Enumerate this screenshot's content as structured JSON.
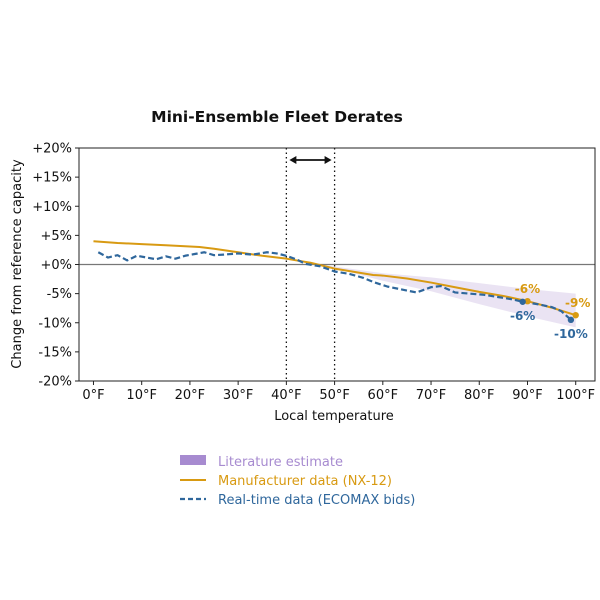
{
  "chart_data": {
    "type": "line",
    "title": "Mini-Ensemble Fleet Derates",
    "xlabel": "Local temperature",
    "ylabel": "Change from reference capacity",
    "xlim": [
      -3,
      104
    ],
    "ylim": [
      -20,
      20
    ],
    "xticks": [
      0,
      10,
      20,
      30,
      40,
      50,
      60,
      70,
      80,
      90,
      100
    ],
    "xtick_labels": [
      "0°F",
      "10°F",
      "20°F",
      "30°F",
      "40°F",
      "50°F",
      "60°F",
      "70°F",
      "80°F",
      "90°F",
      "100°F"
    ],
    "yticks": [
      20,
      15,
      10,
      5,
      0,
      -5,
      -10,
      -15,
      -20
    ],
    "ytick_labels": [
      "+20%",
      "+15%",
      "+10%",
      "+5%",
      "+0%",
      "-5%",
      "-10%",
      "-15%",
      "-20%"
    ],
    "grid": false,
    "reference_line_y": 0,
    "reference_band": {
      "x_start": 40,
      "x_end": 50
    },
    "series": [
      {
        "name": "Literature estimate",
        "kind": "band",
        "color": "#b39ad3",
        "x": [
          47,
          60,
          70,
          80,
          90,
          100
        ],
        "upper": [
          0,
          -1.5,
          -2.2,
          -3.2,
          -4.2,
          -5.0
        ],
        "lower": [
          0,
          -2.8,
          -4.6,
          -6.8,
          -8.9,
          -10.8
        ]
      },
      {
        "name": "Manufacturer data (NX-12)",
        "kind": "line",
        "color": "#d89a12",
        "x": [
          0,
          5,
          10,
          15,
          20,
          22,
          25,
          30,
          35,
          40,
          45,
          50,
          55,
          58,
          60,
          65,
          70,
          75,
          80,
          85,
          90,
          95,
          100
        ],
        "y": [
          4.0,
          3.7,
          3.5,
          3.3,
          3.1,
          3.0,
          2.7,
          2.1,
          1.5,
          1.0,
          0.3,
          -0.7,
          -1.4,
          -1.8,
          -1.9,
          -2.4,
          -3.1,
          -3.9,
          -4.7,
          -5.4,
          -6.3,
          -7.4,
          -8.7
        ]
      },
      {
        "name": "Real-time data (ECOMAX bids)",
        "kind": "dashed-line",
        "color": "#2f679c",
        "x": [
          1,
          3,
          5,
          7,
          9,
          11,
          13,
          15,
          17,
          19,
          21,
          23,
          25,
          27,
          30,
          33,
          36,
          38,
          40,
          42,
          44,
          47,
          50,
          53,
          56,
          58,
          61,
          64,
          67,
          70,
          72,
          75,
          78,
          81,
          84,
          87,
          89,
          92,
          95,
          97,
          99
        ],
        "y": [
          2.1,
          1.2,
          1.6,
          0.7,
          1.5,
          1.2,
          0.9,
          1.4,
          1.0,
          1.5,
          1.8,
          2.1,
          1.6,
          1.7,
          1.9,
          1.7,
          2.1,
          1.9,
          1.5,
          0.9,
          0.1,
          -0.3,
          -1.2,
          -1.6,
          -2.3,
          -3.0,
          -3.8,
          -4.3,
          -4.8,
          -3.9,
          -3.7,
          -4.8,
          -5.0,
          -5.2,
          -5.6,
          -6.0,
          -6.4,
          -6.8,
          -7.3,
          -8.0,
          -9.5
        ]
      }
    ],
    "markers": [
      {
        "series": "Manufacturer data (NX-12)",
        "x": 90,
        "y": -6.3,
        "label": "-6%",
        "label_pos": "above",
        "color": "#d89a12"
      },
      {
        "series": "Manufacturer data (NX-12)",
        "x": 100,
        "y": -8.7,
        "label": "-9%",
        "label_pos": "above",
        "color": "#d89a12"
      },
      {
        "series": "Real-time data (ECOMAX bids)",
        "x": 89,
        "y": -6.4,
        "label": "-6%",
        "label_pos": "below",
        "color": "#2f679c"
      },
      {
        "series": "Real-time data (ECOMAX bids)",
        "x": 99,
        "y": -9.5,
        "label": "-10%",
        "label_pos": "below",
        "color": "#2f679c"
      }
    ],
    "legend": {
      "placement": "below",
      "entries": [
        {
          "label": "Literature estimate",
          "color": "#a78bd0",
          "text_color": "#a78bd0",
          "kind": "patch"
        },
        {
          "label": "Manufacturer data (NX-12)",
          "color": "#d89a12",
          "text_color": "#d89a12",
          "kind": "line"
        },
        {
          "label": "Real-time data (ECOMAX bids)",
          "color": "#2f679c",
          "text_color": "#2f679c",
          "kind": "dashed"
        }
      ]
    }
  }
}
